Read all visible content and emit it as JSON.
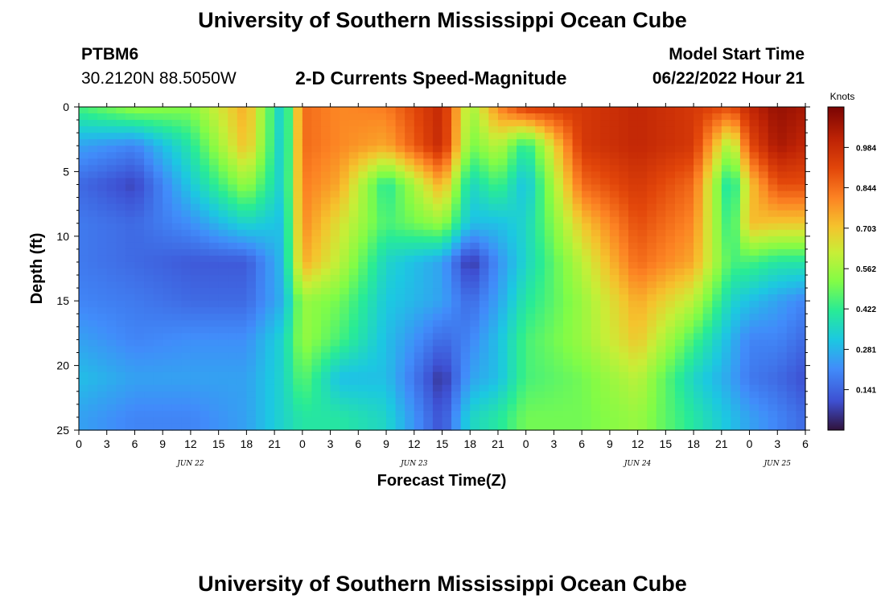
{
  "header": {
    "title": "University of Southern Mississippi Ocean Cube",
    "station": "PTBM6",
    "coords": "30.2120N  88.5050W",
    "subtitle": "2-D Currents Speed-Magnitude",
    "model_label": "Model Start Time",
    "model_time": "06/22/2022 Hour 21"
  },
  "footer": {
    "title": "University of Southern Mississippi Ocean Cube"
  },
  "chart_data": {
    "type": "heatmap",
    "title": "2-D Currents Speed-Magnitude",
    "xlabel": "Forecast Time(Z)",
    "ylabel": "Depth (ft)",
    "x_unit": "hours from 06/22/2022 00Z",
    "x_range": [
      0,
      78
    ],
    "y_range": [
      0,
      25
    ],
    "y_inverted": true,
    "x_tick_labels": [
      "0",
      "3",
      "6",
      "9",
      "12",
      "15",
      "18",
      "21",
      "0",
      "3",
      "6",
      "9",
      "12",
      "15",
      "18",
      "21",
      "0",
      "3",
      "6",
      "9",
      "12",
      "15",
      "18",
      "21",
      "0",
      "3",
      "6"
    ],
    "y_tick_labels": [
      "0",
      "5",
      "10",
      "15",
      "20",
      "25"
    ],
    "day_labels": [
      {
        "label": "JUN 22",
        "hour": 12
      },
      {
        "label": "JUN 23",
        "hour": 36
      },
      {
        "label": "JUN 24",
        "hour": 60
      },
      {
        "label": "JUN 25",
        "hour": 75
      }
    ],
    "colorbar": {
      "label": "Knots",
      "min": 0,
      "max": 1.125,
      "ticks": [
        "0.984",
        "0.844",
        "0.703",
        "0.562",
        "0.422",
        "0.281",
        "0.141"
      ]
    },
    "depths_ft": [
      0,
      3,
      6,
      9,
      12,
      15,
      18,
      21,
      24
    ],
    "hours": [
      0,
      6,
      12,
      18,
      22,
      24,
      28,
      33,
      39,
      42,
      45,
      48,
      54,
      60,
      66,
      70,
      72,
      75,
      78
    ],
    "speed_knots": [
      [
        0.45,
        0.55,
        0.52,
        0.75,
        0.3,
        0.85,
        0.8,
        0.82,
        1.0,
        0.55,
        0.8,
        0.95,
        0.95,
        1.0,
        0.95,
        0.9,
        1.0,
        1.08,
        1.05
      ],
      [
        0.25,
        0.2,
        0.4,
        0.72,
        0.3,
        0.85,
        0.8,
        0.75,
        1.0,
        0.5,
        0.6,
        0.4,
        0.95,
        1.0,
        0.95,
        0.55,
        0.9,
        1.05,
        1.0
      ],
      [
        0.15,
        0.08,
        0.32,
        0.55,
        0.32,
        0.82,
        0.75,
        0.4,
        0.75,
        0.35,
        0.45,
        0.3,
        0.85,
        0.95,
        0.85,
        0.35,
        0.7,
        0.9,
        0.9
      ],
      [
        0.18,
        0.15,
        0.22,
        0.35,
        0.3,
        0.8,
        0.65,
        0.45,
        0.55,
        0.3,
        0.3,
        0.35,
        0.7,
        0.9,
        0.8,
        0.4,
        0.72,
        0.7,
        0.7
      ],
      [
        0.18,
        0.15,
        0.12,
        0.12,
        0.3,
        0.75,
        0.6,
        0.35,
        0.25,
        0.05,
        0.22,
        0.35,
        0.6,
        0.85,
        0.75,
        0.45,
        0.45,
        0.4,
        0.4
      ],
      [
        0.2,
        0.18,
        0.15,
        0.15,
        0.28,
        0.55,
        0.5,
        0.32,
        0.25,
        0.15,
        0.25,
        0.4,
        0.55,
        0.75,
        0.6,
        0.35,
        0.3,
        0.25,
        0.2
      ],
      [
        0.25,
        0.2,
        0.22,
        0.22,
        0.35,
        0.55,
        0.45,
        0.3,
        0.15,
        0.2,
        0.3,
        0.45,
        0.55,
        0.7,
        0.45,
        0.28,
        0.2,
        0.2,
        0.15
      ],
      [
        0.3,
        0.25,
        0.25,
        0.25,
        0.35,
        0.48,
        0.3,
        0.3,
        0.05,
        0.25,
        0.3,
        0.45,
        0.5,
        0.6,
        0.35,
        0.25,
        0.18,
        0.15,
        0.1
      ],
      [
        0.25,
        0.2,
        0.2,
        0.25,
        0.35,
        0.4,
        0.4,
        0.35,
        0.1,
        0.35,
        0.4,
        0.5,
        0.5,
        0.55,
        0.4,
        0.3,
        0.25,
        0.2,
        0.15
      ]
    ]
  }
}
